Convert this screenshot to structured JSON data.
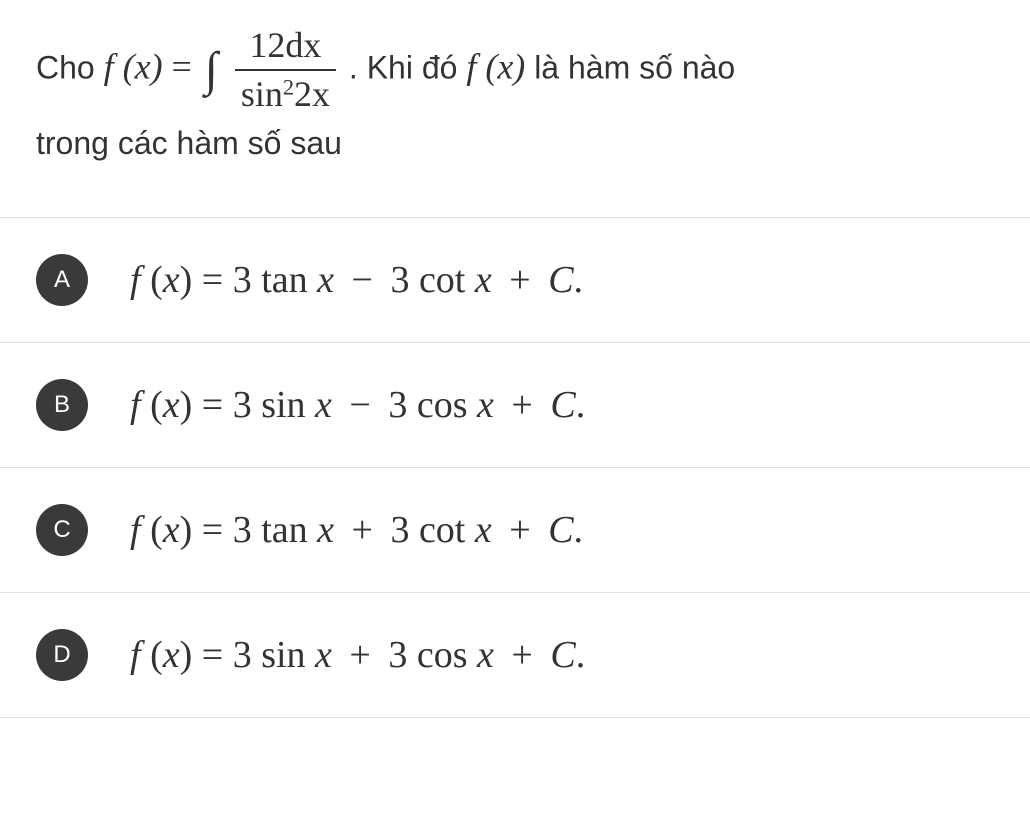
{
  "question": {
    "prefix_text": "Cho ",
    "expr_fx": "f (x)",
    "equals": " = ",
    "integral_numerator_num": "12",
    "integral_numerator_d": "dx",
    "integral_denominator_sin": "sin",
    "integral_denominator_exp": "2",
    "integral_denominator_arg": "2x",
    "middle_text": ". Khi đó ",
    "expr_fx2": "f (x)",
    "suffix_text": " là hàm số nào",
    "line2_text": "trong các hàm số sau"
  },
  "options": [
    {
      "label": "A",
      "lhs_f": "f",
      "lhs_x": "x",
      "eq": " = ",
      "t1_coef": "3 ",
      "t1_fn": "tan",
      "t1_arg": " x",
      "op1": " − ",
      "t2_coef": "3 ",
      "t2_fn": "cot",
      "t2_arg": " x",
      "op2": " + ",
      "const": "C",
      "period": "."
    },
    {
      "label": "B",
      "lhs_f": "f",
      "lhs_x": "x",
      "eq": " = ",
      "t1_coef": "3 ",
      "t1_fn": "sin",
      "t1_arg": " x",
      "op1": " − ",
      "t2_coef": "3 ",
      "t2_fn": "cos",
      "t2_arg": " x",
      "op2": " + ",
      "const": "C",
      "period": "."
    },
    {
      "label": "C",
      "lhs_f": "f",
      "lhs_x": "x",
      "eq": " = ",
      "t1_coef": "3 ",
      "t1_fn": "tan",
      "t1_arg": " x",
      "op1": " + ",
      "t2_coef": "3 ",
      "t2_fn": "cot",
      "t2_arg": " x",
      "op2": " + ",
      "const": "C",
      "period": "."
    },
    {
      "label": "D",
      "lhs_f": "f",
      "lhs_x": "x",
      "eq": " = ",
      "t1_coef": "3 ",
      "t1_fn": "sin",
      "t1_arg": " x",
      "op1": " + ",
      "t2_coef": "3 ",
      "t2_fn": "cos",
      "t2_arg": " x",
      "op2": " + ",
      "const": "C",
      "period": "."
    }
  ],
  "style": {
    "background_color": "#ffffff",
    "text_color": "#333333",
    "divider_color": "#e0e0e0",
    "badge_bg": "#3a3a3a",
    "badge_fg": "#ffffff",
    "question_fontsize": 32,
    "option_fontsize": 38,
    "badge_diameter": 52
  }
}
